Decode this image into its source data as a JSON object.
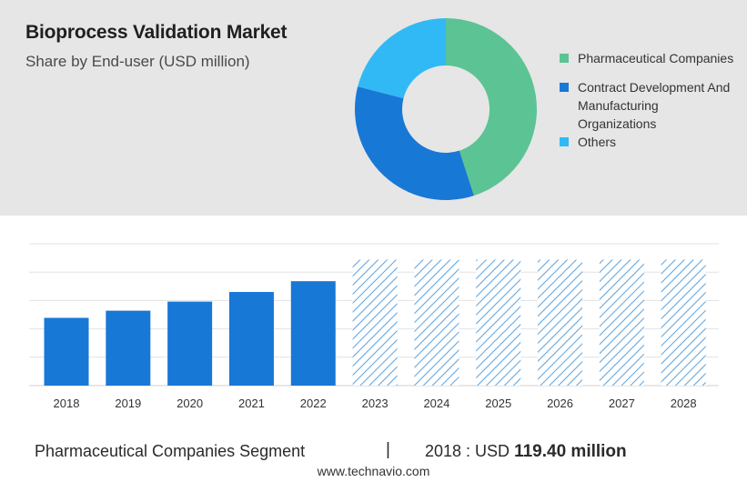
{
  "header": {
    "title": "Bioprocess Validation Market",
    "subtitle": "Share by End-user (USD million)"
  },
  "donut": {
    "segments": [
      {
        "label": "Pharmaceutical Companies",
        "value": 45,
        "color": "#5cc394"
      },
      {
        "label": "Contract Development And Manufacturing Organizations",
        "value": 34,
        "color": "#1878d6"
      },
      {
        "label": "Others",
        "value": 21,
        "color": "#31b9f5"
      }
    ]
  },
  "legend": {
    "items": [
      {
        "label": "Pharmaceutical Companies",
        "color": "#5cc394"
      },
      {
        "label": "Contract Development And Manufacturing Organizations",
        "color": "#1878d6"
      },
      {
        "label": "Others",
        "color": "#31b9f5"
      }
    ]
  },
  "chart_data": {
    "type": "bar",
    "categories": [
      "2018",
      "2019",
      "2020",
      "2021",
      "2022",
      "2023",
      "2024",
      "2025",
      "2026",
      "2027",
      "2028"
    ],
    "values": [
      119.4,
      132,
      148,
      165,
      184,
      222,
      222,
      222,
      222,
      222,
      222
    ],
    "forecast_from": "2023",
    "ylim": [
      0,
      250
    ],
    "grid": true,
    "bar_color": "#1878d6",
    "forecast_color": "#5aa2dd"
  },
  "footer": {
    "segment": "Pharmaceutical Companies Segment",
    "separator": "|",
    "year_text": "2018 : USD",
    "value_text": "119.40 million",
    "source": "www.technavio.com"
  }
}
